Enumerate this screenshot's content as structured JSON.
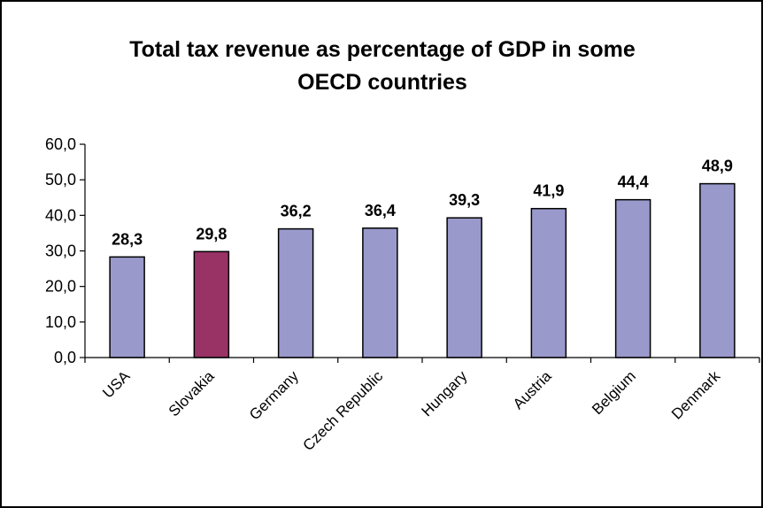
{
  "chart_data": {
    "type": "bar",
    "title": "Total tax revenue as percentage of GDP in some OECD countries",
    "categories": [
      "USA",
      "Slovakia",
      "Germany",
      "Czech Republic",
      "Hungary",
      "Austria",
      "Belgium",
      "Denmark"
    ],
    "values": [
      28.3,
      29.8,
      36.2,
      36.4,
      39.3,
      41.9,
      44.4,
      48.9
    ],
    "data_labels": [
      "28,3",
      "29,8",
      "36,2",
      "36,4",
      "39,3",
      "41,9",
      "44,4",
      "48,9"
    ],
    "ylim": [
      0,
      60
    ],
    "yticks": [
      0,
      10,
      20,
      30,
      40,
      50,
      60
    ],
    "ytick_labels": [
      "0,0",
      "10,0",
      "20,0",
      "30,0",
      "40,0",
      "50,0",
      "60,0"
    ],
    "xlabel": "",
    "ylabel": "",
    "grid": false,
    "legend": "none",
    "colors": {
      "default": "#9999cc",
      "highlight": "#993366",
      "outline": "#000000"
    },
    "highlight_category": "Slovakia"
  }
}
